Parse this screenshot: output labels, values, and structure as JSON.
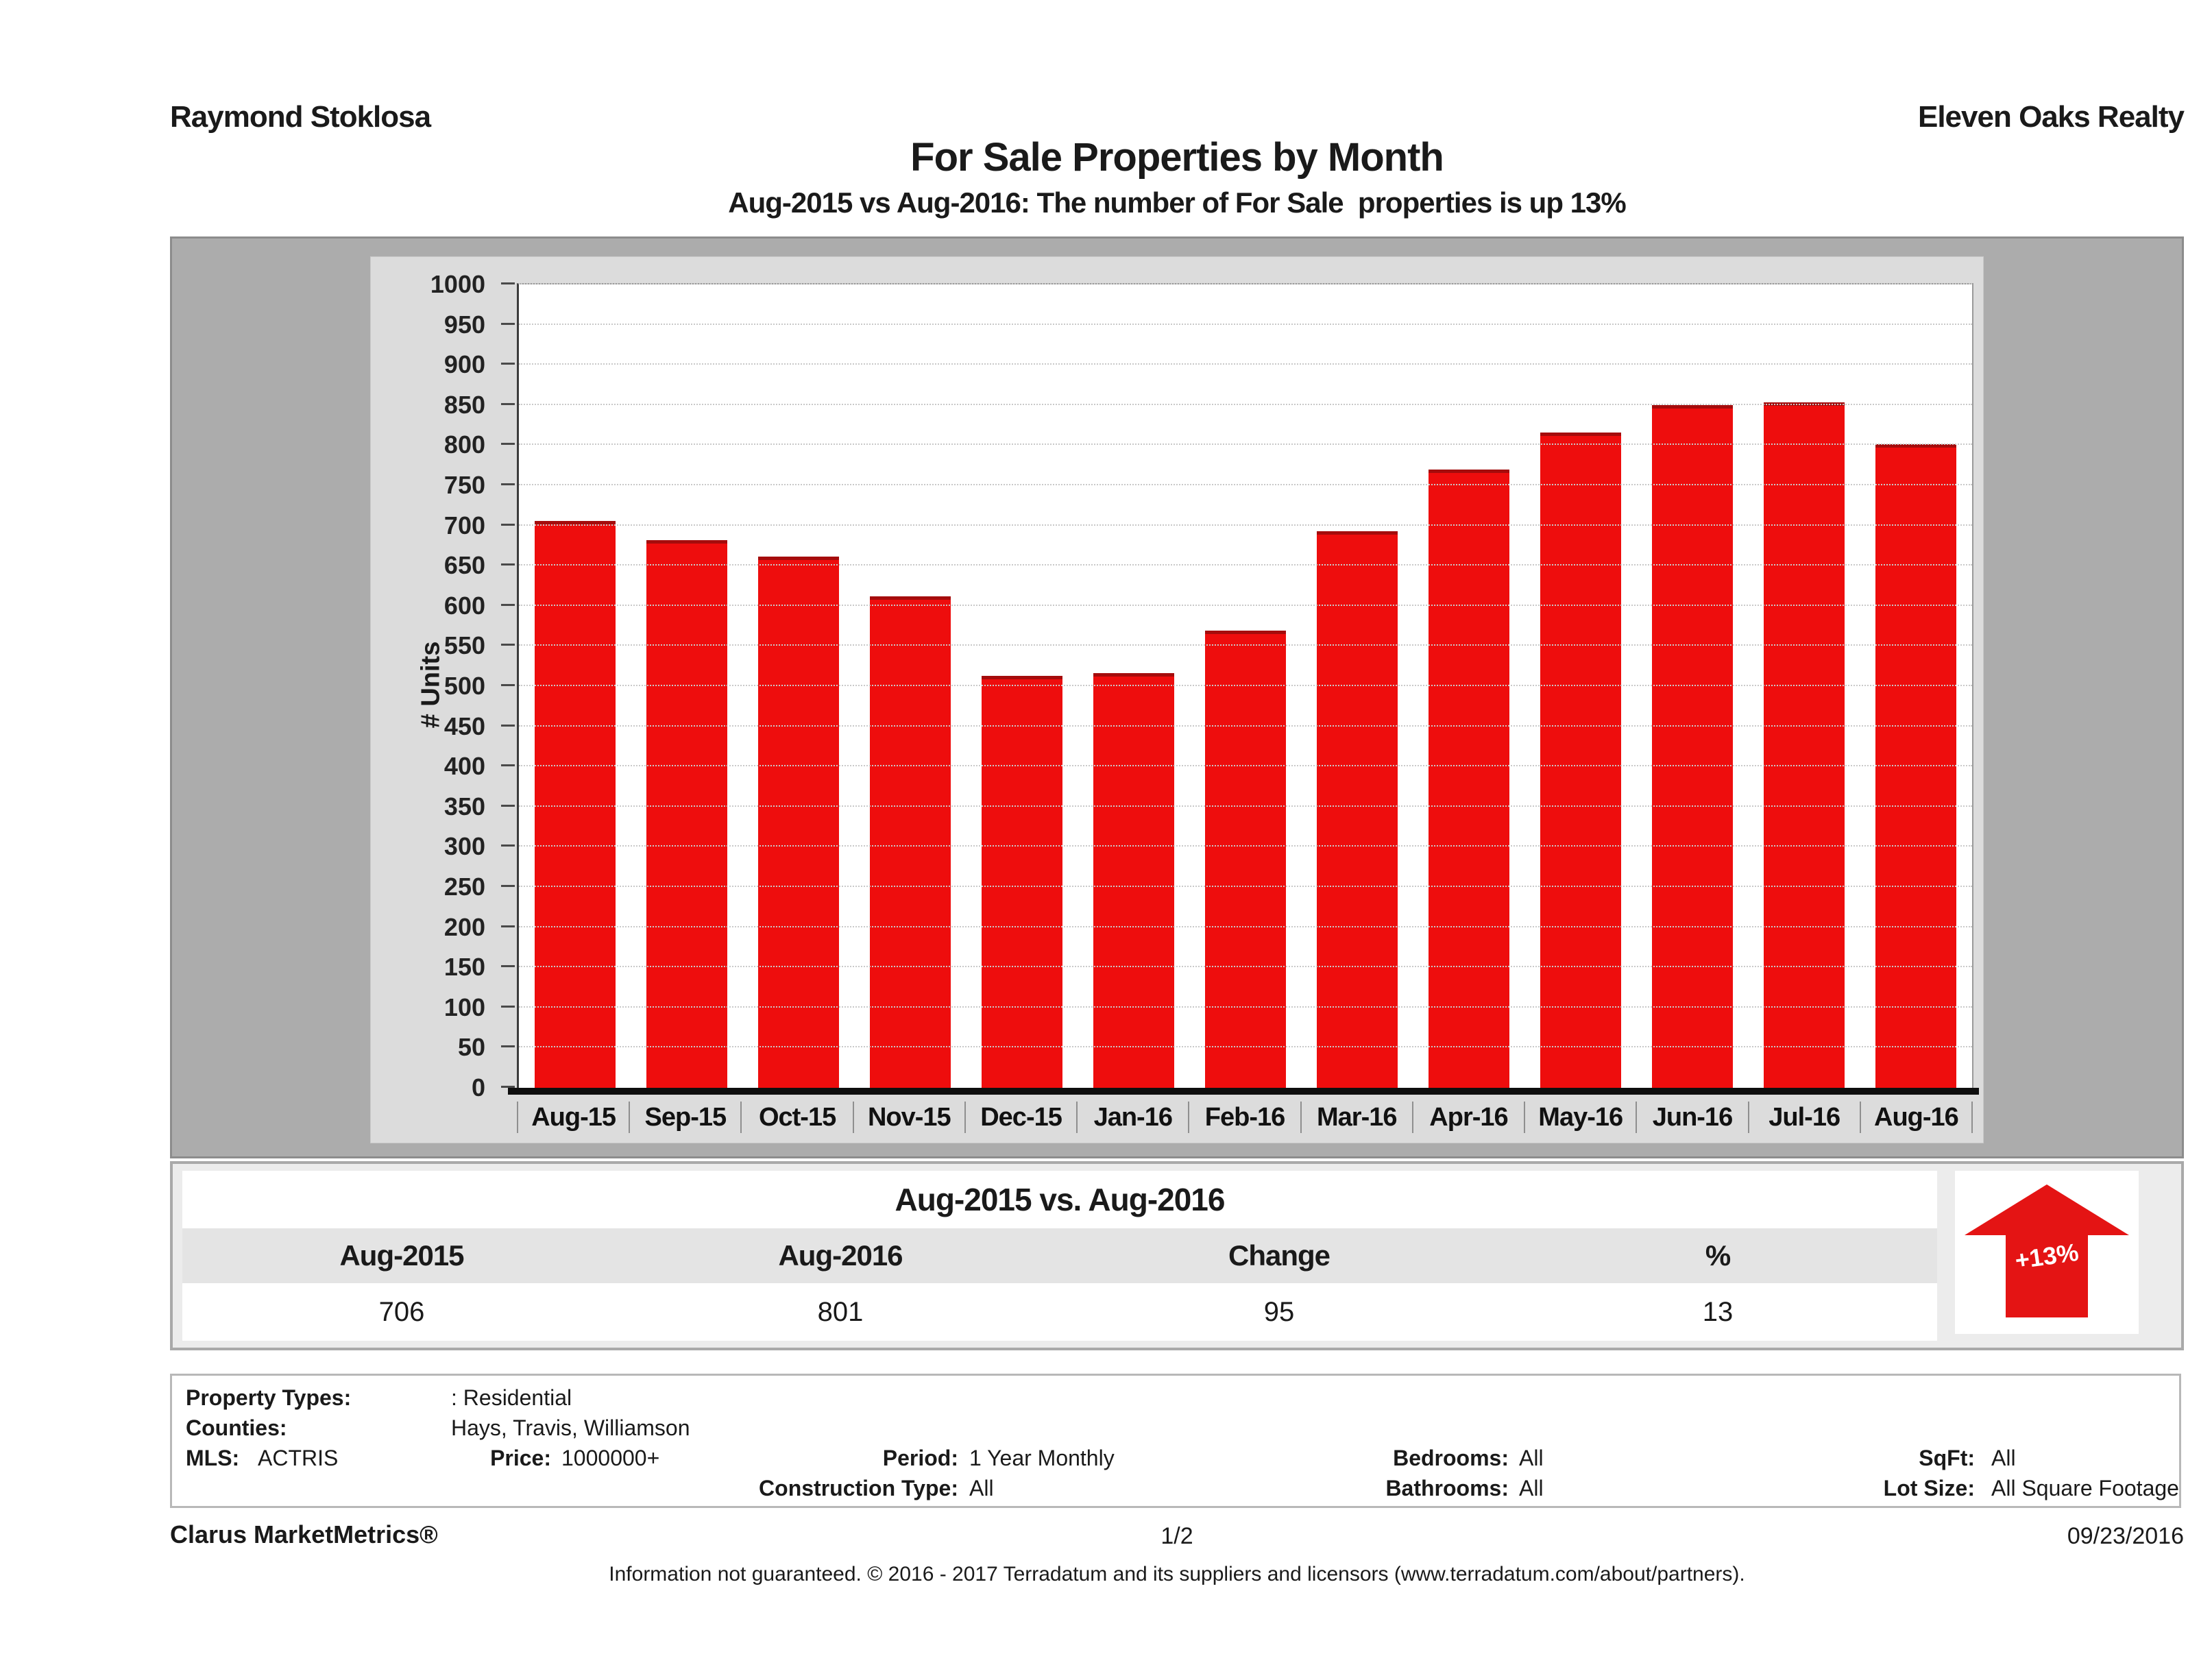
{
  "header": {
    "left": "Raymond Stoklosa",
    "right": "Eleven Oaks Realty"
  },
  "title": "For Sale Properties by Month",
  "subtitle": "Aug-2015 vs Aug-2016: The number of For Sale  properties is up 13%",
  "chart_data": {
    "type": "bar",
    "title": "For Sale Properties by Month",
    "categories": [
      "Aug-15",
      "Sep-15",
      "Oct-15",
      "Nov-15",
      "Dec-15",
      "Jan-16",
      "Feb-16",
      "Mar-16",
      "Apr-16",
      "May-16",
      "Jun-16",
      "Jul-16",
      "Aug-16"
    ],
    "values": [
      706,
      682,
      661,
      612,
      513,
      516,
      569,
      693,
      770,
      816,
      850,
      853,
      801
    ],
    "xlabel": "",
    "ylabel": "# Units",
    "ylim": [
      0,
      1000
    ],
    "ytick_step": 50,
    "grid": true,
    "legend_position": "none",
    "bar_color": "#ee0d0d"
  },
  "comparison": {
    "title": "Aug-2015 vs. Aug-2016",
    "columns": [
      "Aug-2015",
      "Aug-2016",
      "Change",
      "%"
    ],
    "values": [
      "706",
      "801",
      "95",
      "13"
    ],
    "badge": "+13%",
    "badge_color": "#e41414"
  },
  "details": {
    "property_types_label": "Property Types:",
    "property_types_value": ": Residential",
    "counties_label": "Counties:",
    "counties_value": "Hays, Travis, Williamson",
    "mls_label": "MLS:",
    "mls_value": "ACTRIS",
    "price_label": "Price:",
    "price_value": "1000000+",
    "period_label": "Period:",
    "period_value": "1 Year Monthly",
    "bedrooms_label": "Bedrooms:",
    "bedrooms_value": "All",
    "sqft_label": "SqFt:",
    "sqft_value": "All",
    "construction_label": "Construction Type:",
    "construction_value": "All",
    "bathrooms_label": "Bathrooms:",
    "bathrooms_value": "All",
    "lot_label": "Lot Size:",
    "lot_value": "All Square Footage"
  },
  "footer": {
    "left": "Clarus MarketMetrics®",
    "center": "1/2",
    "right": "09/23/2016",
    "disclaimer": "Information not guaranteed. © 2016 - 2017 Terradatum and its suppliers and licensors (www.terradatum.com/about/partners)."
  }
}
